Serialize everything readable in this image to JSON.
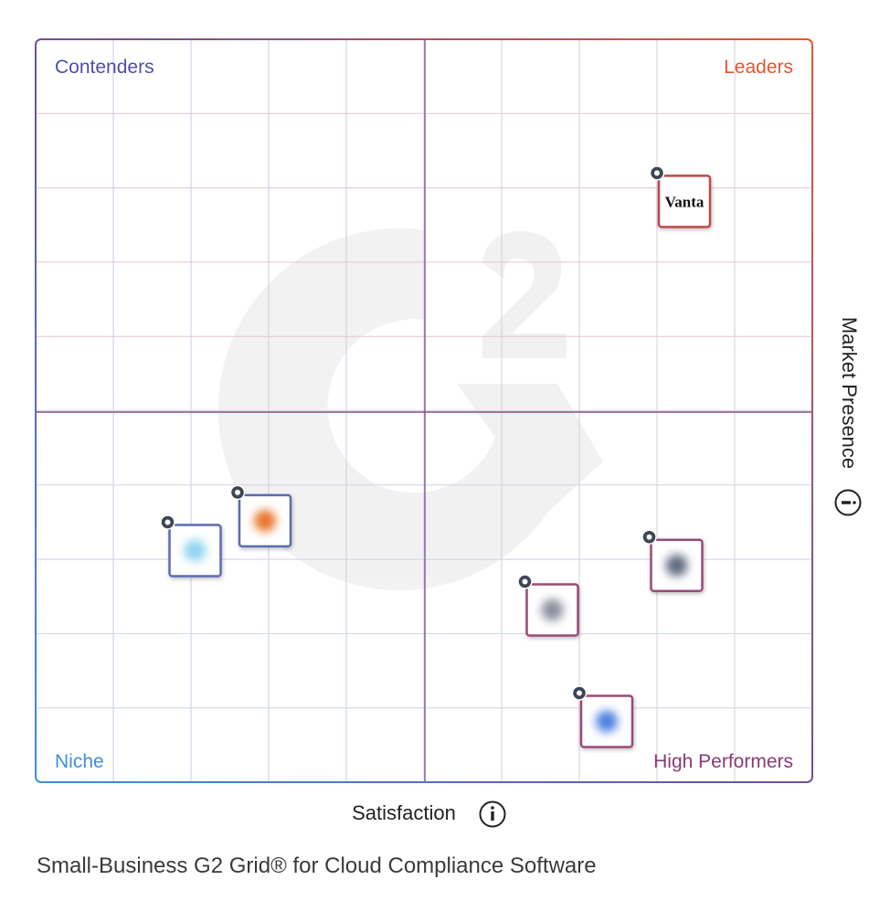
{
  "chart_data": {
    "type": "scatter",
    "title": "Small-Business G2 Grid® for Cloud Compliance Software",
    "xlabel": "Satisfaction",
    "ylabel": "Market Presence",
    "xlim": [
      0,
      10
    ],
    "ylim": [
      0,
      10
    ],
    "grid": true,
    "quadrants": {
      "top_left": "Contenders",
      "top_right": "Leaders",
      "bottom_left": "Niche",
      "bottom_right": "High Performers"
    },
    "points": [
      {
        "label": "Vanta",
        "x": 8.0,
        "y": 8.2,
        "quadrant": "Leaders"
      },
      {
        "label": "",
        "x": 2.6,
        "y": 3.9,
        "quadrant": "Niche"
      },
      {
        "label": "",
        "x": 1.7,
        "y": 3.5,
        "quadrant": "Niche"
      },
      {
        "label": "",
        "x": 7.9,
        "y": 3.3,
        "quadrant": "High Performers"
      },
      {
        "label": "",
        "x": 6.3,
        "y": 2.7,
        "quadrant": "High Performers"
      },
      {
        "label": "",
        "x": 7.0,
        "y": 1.2,
        "quadrant": "High Performers"
      }
    ]
  },
  "colors": {
    "contenders": "#4b4fae",
    "leaders": "#e5552f",
    "niche": "#3f8fd4",
    "high_performers": "#8a3a78",
    "leader_tile": "#c0464a",
    "niche_tile": "#5a6db1",
    "hp_tile": "#9a4a78",
    "pin": "#3d4654"
  },
  "icons": {
    "info": "info-circle-icon",
    "watermark": "g2-logo-watermark",
    "pin": "location-pin-icon"
  }
}
